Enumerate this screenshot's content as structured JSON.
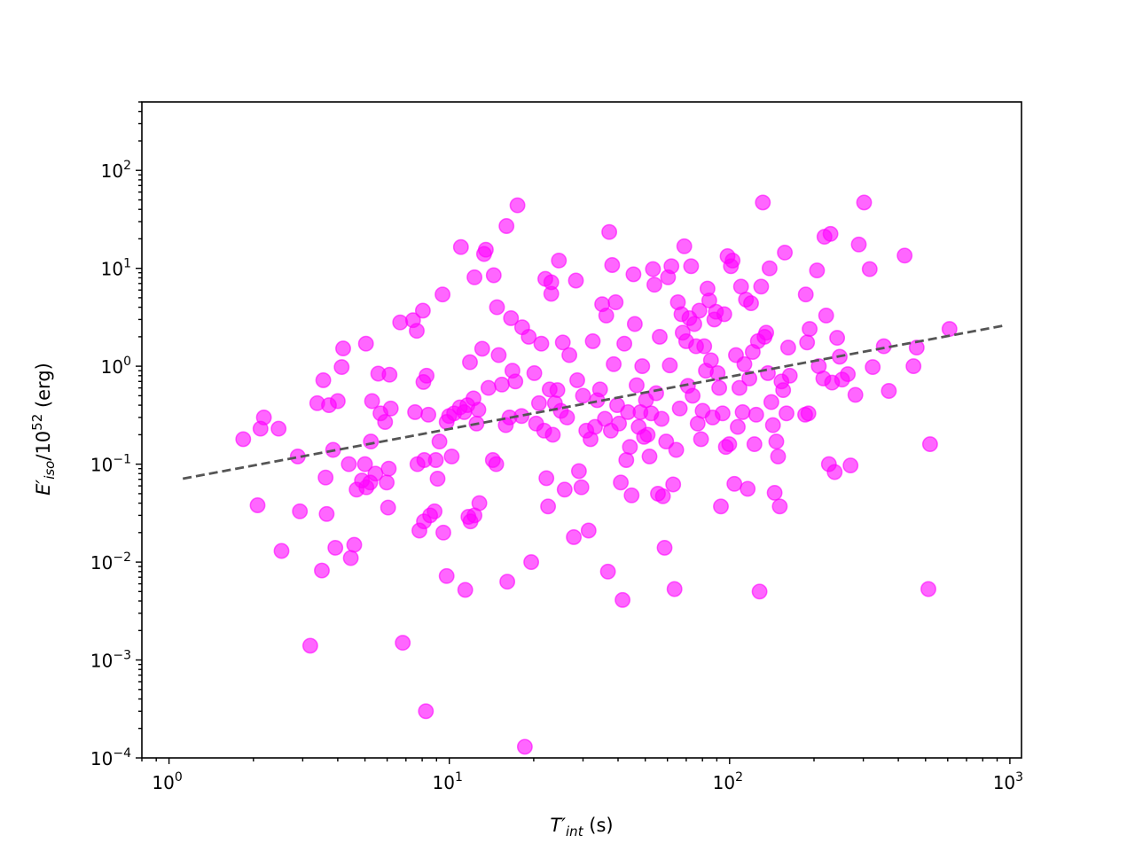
{
  "chart_data": {
    "type": "scatter",
    "title": "",
    "xlabel": "T'int (s)",
    "ylabel": "E'iso/10^52 (erg)",
    "xscale": "log",
    "yscale": "log",
    "xlim": [
      0.8,
      1100
    ],
    "ylim": [
      0.0001,
      500
    ],
    "xticks": [
      {
        "value": 1,
        "base": "10",
        "exp": "0"
      },
      {
        "value": 10,
        "base": "10",
        "exp": "1"
      },
      {
        "value": 100,
        "base": "10",
        "exp": "2"
      },
      {
        "value": 1000,
        "base": "10",
        "exp": "3"
      }
    ],
    "yticks": [
      {
        "value": 0.0001,
        "base": "10",
        "exp": "−4"
      },
      {
        "value": 0.001,
        "base": "10",
        "exp": "−3"
      },
      {
        "value": 0.01,
        "base": "10",
        "exp": "−2"
      },
      {
        "value": 0.1,
        "base": "10",
        "exp": "−1"
      },
      {
        "value": 1,
        "base": "10",
        "exp": "0"
      },
      {
        "value": 10,
        "base": "10",
        "exp": "1"
      },
      {
        "value": 100,
        "base": "10",
        "exp": "2"
      }
    ],
    "marker_color": "#ff00ff",
    "marker_alpha": 0.6,
    "fit_line": {
      "x": [
        1.12,
        950
      ],
      "y": [
        0.071,
        2.6
      ],
      "color": "#555555",
      "style": "dashed"
    },
    "points": [
      [
        1.84,
        0.18
      ],
      [
        2.07,
        0.038
      ],
      [
        2.12,
        0.23
      ],
      [
        2.18,
        0.3
      ],
      [
        2.46,
        0.23
      ],
      [
        2.52,
        0.013
      ],
      [
        2.88,
        0.12
      ],
      [
        2.93,
        0.033
      ],
      [
        3.19,
        0.0014
      ],
      [
        3.38,
        0.42
      ],
      [
        3.51,
        0.0082
      ],
      [
        3.55,
        0.72
      ],
      [
        3.62,
        0.073
      ],
      [
        3.65,
        0.031
      ],
      [
        3.72,
        0.4
      ],
      [
        3.85,
        0.14
      ],
      [
        3.92,
        0.014
      ],
      [
        4.0,
        0.44
      ],
      [
        4.13,
        0.98
      ],
      [
        4.18,
        1.52
      ],
      [
        4.38,
        0.1
      ],
      [
        4.45,
        0.011
      ],
      [
        4.58,
        0.015
      ],
      [
        4.67,
        0.055
      ],
      [
        4.88,
        0.068
      ],
      [
        5.0,
        0.1
      ],
      [
        5.04,
        1.7
      ],
      [
        5.06,
        0.058
      ],
      [
        5.25,
        0.17
      ],
      [
        5.22,
        0.065
      ],
      [
        5.3,
        0.44
      ],
      [
        5.45,
        0.08
      ],
      [
        5.58,
        0.84
      ],
      [
        5.68,
        0.33
      ],
      [
        5.9,
        0.27
      ],
      [
        5.98,
        0.065
      ],
      [
        6.08,
        0.09
      ],
      [
        6.05,
        0.036
      ],
      [
        6.18,
        0.37
      ],
      [
        6.12,
        0.82
      ],
      [
        6.68,
        2.8
      ],
      [
        6.82,
        0.0015
      ],
      [
        7.42,
        2.95
      ],
      [
        7.55,
        0.34
      ],
      [
        7.65,
        2.3
      ],
      [
        7.7,
        0.1
      ],
      [
        7.82,
        0.021
      ],
      [
        8.05,
        3.7
      ],
      [
        8.12,
        0.026
      ],
      [
        8.14,
        0.11
      ],
      [
        8.08,
        0.69
      ],
      [
        8.25,
        0.0003
      ],
      [
        8.3,
        0.8
      ],
      [
        8.42,
        0.32
      ],
      [
        8.54,
        0.03
      ],
      [
        8.86,
        0.033
      ],
      [
        8.95,
        0.11
      ],
      [
        9.08,
        0.071
      ],
      [
        9.22,
        0.17
      ],
      [
        9.46,
        5.4
      ],
      [
        9.52,
        0.02
      ],
      [
        9.78,
        0.27
      ],
      [
        9.78,
        0.0072
      ],
      [
        9.98,
        0.31
      ],
      [
        10.2,
        0.12
      ],
      [
        10.4,
        0.33
      ],
      [
        10.9,
        0.38
      ],
      [
        11.0,
        16.5
      ],
      [
        11.3,
        0.34
      ],
      [
        11.4,
        0.0052
      ],
      [
        11.6,
        0.4
      ],
      [
        11.7,
        0.029
      ],
      [
        11.85,
        1.1
      ],
      [
        11.9,
        0.026
      ],
      [
        12.2,
        0.47
      ],
      [
        12.3,
        8.1
      ],
      [
        12.3,
        0.03
      ],
      [
        12.5,
        0.26
      ],
      [
        12.7,
        0.36
      ],
      [
        12.8,
        0.04
      ],
      [
        13.1,
        1.51
      ],
      [
        13.3,
        14.0
      ],
      [
        13.5,
        15.5
      ],
      [
        13.8,
        0.6
      ],
      [
        14.3,
        0.11
      ],
      [
        14.4,
        8.5
      ],
      [
        14.7,
        0.1
      ],
      [
        14.8,
        4.0
      ],
      [
        15.0,
        1.3
      ],
      [
        15.4,
        0.65
      ],
      [
        15.9,
        0.25
      ],
      [
        16.0,
        27.0
      ],
      [
        16.1,
        0.0063
      ],
      [
        16.4,
        0.3
      ],
      [
        16.6,
        3.1
      ],
      [
        16.8,
        0.9
      ],
      [
        17.2,
        0.7
      ],
      [
        17.5,
        44.0
      ],
      [
        18.1,
        0.31
      ],
      [
        18.2,
        2.5
      ],
      [
        18.6,
        0.00013
      ],
      [
        19.2,
        2.0
      ],
      [
        19.6,
        0.01
      ],
      [
        20.1,
        0.85
      ],
      [
        20.4,
        0.26
      ],
      [
        20.9,
        0.42
      ],
      [
        21.3,
        1.7
      ],
      [
        21.8,
        0.22
      ],
      [
        22.0,
        7.8
      ],
      [
        22.2,
        0.072
      ],
      [
        22.5,
        0.037
      ],
      [
        22.8,
        0.58
      ],
      [
        23.1,
        7.2
      ],
      [
        23.1,
        5.5
      ],
      [
        23.4,
        0.2
      ],
      [
        23.8,
        0.42
      ],
      [
        24.3,
        0.57
      ],
      [
        24.6,
        12.0
      ],
      [
        25.0,
        0.35
      ],
      [
        25.4,
        1.75
      ],
      [
        25.8,
        0.055
      ],
      [
        26.3,
        0.3
      ],
      [
        26.8,
        1.3
      ],
      [
        27.8,
        0.018
      ],
      [
        28.3,
        7.5
      ],
      [
        28.6,
        0.72
      ],
      [
        29.0,
        0.085
      ],
      [
        29.6,
        0.058
      ],
      [
        30.0,
        0.5
      ],
      [
        30.8,
        0.22
      ],
      [
        31.4,
        0.021
      ],
      [
        31.9,
        0.18
      ],
      [
        32.5,
        1.8
      ],
      [
        33.1,
        0.24
      ],
      [
        33.7,
        0.45
      ],
      [
        34.5,
        0.58
      ],
      [
        35.1,
        4.3
      ],
      [
        35.9,
        0.29
      ],
      [
        36.3,
        3.3
      ],
      [
        36.8,
        0.008
      ],
      [
        37.2,
        23.5
      ],
      [
        37.7,
        0.22
      ],
      [
        38.1,
        10.8
      ],
      [
        38.6,
        1.05
      ],
      [
        39.2,
        4.5
      ],
      [
        39.7,
        0.4
      ],
      [
        40.3,
        0.26
      ],
      [
        40.9,
        0.065
      ],
      [
        41.5,
        0.0041
      ],
      [
        42.1,
        1.7
      ],
      [
        42.8,
        0.11
      ],
      [
        43.4,
        0.34
      ],
      [
        44.1,
        0.15
      ],
      [
        44.7,
        0.048
      ],
      [
        45.4,
        8.7
      ],
      [
        45.9,
        2.7
      ],
      [
        46.6,
        0.64
      ],
      [
        47.4,
        0.24
      ],
      [
        48.1,
        0.34
      ],
      [
        48.8,
        1.0
      ],
      [
        49.5,
        0.19
      ],
      [
        50.3,
        0.45
      ],
      [
        51.0,
        0.2
      ],
      [
        51.8,
        0.12
      ],
      [
        52.5,
        0.33
      ],
      [
        53.3,
        9.8
      ],
      [
        53.9,
        6.8
      ],
      [
        54.7,
        0.53
      ],
      [
        55.5,
        0.05
      ],
      [
        56.3,
        2.0
      ],
      [
        57.2,
        0.29
      ],
      [
        57.8,
        0.047
      ],
      [
        58.6,
        0.014
      ],
      [
        59.4,
        0.17
      ],
      [
        60.3,
        8.1
      ],
      [
        61.2,
        1.02
      ],
      [
        62.0,
        10.5
      ],
      [
        62.9,
        0.062
      ],
      [
        63.6,
        0.0053
      ],
      [
        64.5,
        0.14
      ],
      [
        65.4,
        4.5
      ],
      [
        66.4,
        0.37
      ],
      [
        67.3,
        3.4
      ],
      [
        68.0,
        2.2
      ],
      [
        68.9,
        16.8
      ],
      [
        70.0,
        1.8
      ],
      [
        71.0,
        0.63
      ],
      [
        71.9,
        3.1
      ],
      [
        72.9,
        10.5
      ],
      [
        73.8,
        0.5
      ],
      [
        74.8,
        2.7
      ],
      [
        75.9,
        1.6
      ],
      [
        76.9,
        0.26
      ],
      [
        78.0,
        3.7
      ],
      [
        79.1,
        0.18
      ],
      [
        80.1,
        0.35
      ],
      [
        81.2,
        1.6
      ],
      [
        82.3,
        0.9
      ],
      [
        83.4,
        6.2
      ],
      [
        84.6,
        4.7
      ],
      [
        85.8,
        1.15
      ],
      [
        87.0,
        0.3
      ],
      [
        88.2,
        3.0
      ],
      [
        89.4,
        3.6
      ],
      [
        90.6,
        0.85
      ],
      [
        91.8,
        0.6
      ],
      [
        93.1,
        0.037
      ],
      [
        94.4,
        0.33
      ],
      [
        95.7,
        3.4
      ],
      [
        97.0,
        0.15
      ],
      [
        98.3,
        13.3
      ],
      [
        99.7,
        0.16
      ],
      [
        101.1,
        10.5
      ],
      [
        102.5,
        12.0
      ],
      [
        104.0,
        0.063
      ],
      [
        105.4,
        1.3
      ],
      [
        106.9,
        0.24
      ],
      [
        108.4,
        0.6
      ],
      [
        109.8,
        6.5
      ],
      [
        111.3,
        0.34
      ],
      [
        112.9,
        1.05
      ],
      [
        114.4,
        4.8
      ],
      [
        116.0,
        0.056
      ],
      [
        117.6,
        0.75
      ],
      [
        119.3,
        4.4
      ],
      [
        120.9,
        1.4
      ],
      [
        122.6,
        0.16
      ],
      [
        124.4,
        0.32
      ],
      [
        126.1,
        1.8
      ],
      [
        127.9,
        0.005
      ],
      [
        129.6,
        6.5
      ],
      [
        131.4,
        47.0
      ],
      [
        133.2,
        2.0
      ],
      [
        135.1,
        2.2
      ],
      [
        137.0,
        0.85
      ],
      [
        138.9,
        10.0
      ],
      [
        140.9,
        0.43
      ],
      [
        142.8,
        0.25
      ],
      [
        144.8,
        0.051
      ],
      [
        146.8,
        0.17
      ],
      [
        148.9,
        0.12
      ],
      [
        151.0,
        0.037
      ],
      [
        153.1,
        0.7
      ],
      [
        155.2,
        0.57
      ],
      [
        157.4,
        14.5
      ],
      [
        159.6,
        0.33
      ],
      [
        161.8,
        1.55
      ],
      [
        164.0,
        0.8
      ],
      [
        186.0,
        0.32
      ],
      [
        187.0,
        5.4
      ],
      [
        189.0,
        1.75
      ],
      [
        191.0,
        0.33
      ],
      [
        193.0,
        2.4
      ],
      [
        205.0,
        9.5
      ],
      [
        208.0,
        1.0
      ],
      [
        216.0,
        0.75
      ],
      [
        218.0,
        21.0
      ],
      [
        221.0,
        3.3
      ],
      [
        226.0,
        0.1
      ],
      [
        229.0,
        22.5
      ],
      [
        232.0,
        0.68
      ],
      [
        237.0,
        0.083
      ],
      [
        242.0,
        1.95
      ],
      [
        247.0,
        1.25
      ],
      [
        252.0,
        0.73
      ],
      [
        264.0,
        0.83
      ],
      [
        270.0,
        0.097
      ],
      [
        281.0,
        0.51
      ],
      [
        289.0,
        17.5
      ],
      [
        302.0,
        47.0
      ],
      [
        316.0,
        9.8
      ],
      [
        324.0,
        0.98
      ],
      [
        355.0,
        1.6
      ],
      [
        370.0,
        0.56
      ],
      [
        421.0,
        13.5
      ],
      [
        453.0,
        1.0
      ],
      [
        465.0,
        1.55
      ],
      [
        512.0,
        0.0053
      ],
      [
        519.0,
        0.16
      ],
      [
        609.0,
        2.4
      ]
    ]
  }
}
